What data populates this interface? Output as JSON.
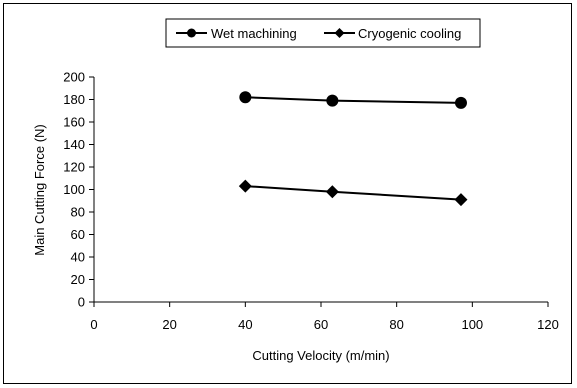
{
  "chart_data": {
    "type": "line",
    "title": "",
    "xlabel": "Cutting Velocity (m/min)",
    "ylabel": "Main Cutting Force (N)",
    "xlim": [
      0,
      120
    ],
    "ylim": [
      0,
      200
    ],
    "x_ticks": [
      "0",
      "20",
      "40",
      "60",
      "80",
      "100",
      "120"
    ],
    "y_ticks": [
      "0",
      "20",
      "40",
      "60",
      "80",
      "100",
      "120",
      "140",
      "160",
      "180",
      "200"
    ],
    "grid": false,
    "legend_position": "top-center",
    "series": [
      {
        "name": "Wet machining",
        "marker": "circle",
        "color": "#000000",
        "x": [
          40,
          63,
          97
        ],
        "y": [
          182,
          179,
          177
        ]
      },
      {
        "name": "Cryogenic cooling",
        "marker": "diamond",
        "color": "#000000",
        "x": [
          40,
          63,
          97
        ],
        "y": [
          103,
          98,
          91
        ]
      }
    ]
  }
}
